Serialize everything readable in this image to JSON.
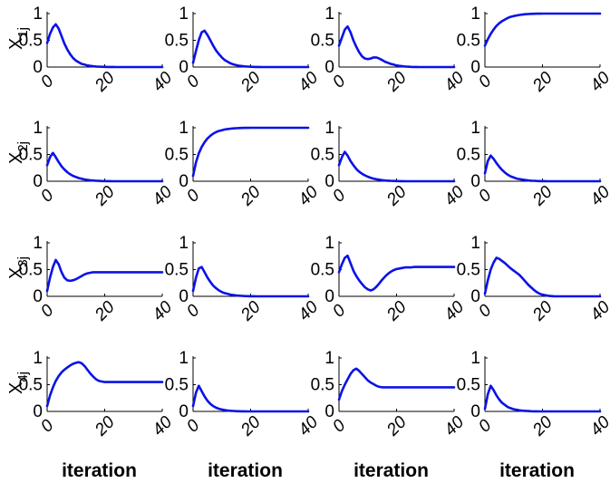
{
  "chart_data": {
    "type": "line",
    "layout": {
      "rows": 4,
      "cols": 4
    },
    "line_color": "#0a12e6",
    "xlim": [
      0,
      40
    ],
    "ylim": [
      0,
      1
    ],
    "xticks": [
      "0",
      "20",
      "40"
    ],
    "yticks": [
      "0",
      "0.5",
      "1"
    ],
    "x": [
      0,
      1,
      2,
      3,
      4,
      5,
      6,
      7,
      8,
      9,
      10,
      11,
      12,
      13,
      14,
      15,
      16,
      17,
      18,
      19,
      20,
      21,
      22,
      23,
      24,
      25,
      26,
      27,
      28,
      29,
      30,
      31,
      32,
      33,
      34,
      35,
      36,
      37,
      38,
      39,
      40
    ],
    "row_labels": [
      {
        "main": "X",
        "sub": "1j"
      },
      {
        "main": "X",
        "sub": "2j"
      },
      {
        "main": "X",
        "sub": "3j"
      },
      {
        "main": "X",
        "sub": "4j"
      }
    ],
    "xlabel": "iteration",
    "panels": [
      {
        "row": 1,
        "col": 1,
        "values": [
          0.45,
          0.62,
          0.74,
          0.8,
          0.72,
          0.58,
          0.44,
          0.33,
          0.24,
          0.17,
          0.12,
          0.09,
          0.06,
          0.045,
          0.03,
          0.022,
          0.015,
          0.01,
          0.007,
          0.005,
          0.003,
          0.002,
          0.001,
          0.001,
          0,
          0,
          0,
          0,
          0,
          0,
          0,
          0,
          0,
          0,
          0,
          0,
          0,
          0,
          0,
          0,
          0
        ]
      },
      {
        "row": 1,
        "col": 2,
        "values": [
          0.08,
          0.3,
          0.5,
          0.65,
          0.68,
          0.6,
          0.5,
          0.4,
          0.31,
          0.24,
          0.18,
          0.13,
          0.1,
          0.07,
          0.05,
          0.035,
          0.025,
          0.018,
          0.012,
          0.008,
          0.005,
          0.003,
          0.002,
          0.001,
          0,
          0,
          0,
          0,
          0,
          0,
          0,
          0,
          0,
          0,
          0,
          0,
          0,
          0,
          0,
          0,
          0
        ]
      },
      {
        "row": 1,
        "col": 3,
        "values": [
          0.4,
          0.55,
          0.7,
          0.76,
          0.65,
          0.5,
          0.38,
          0.28,
          0.2,
          0.16,
          0.15,
          0.16,
          0.18,
          0.18,
          0.16,
          0.13,
          0.1,
          0.08,
          0.06,
          0.045,
          0.03,
          0.022,
          0.015,
          0.01,
          0.007,
          0.004,
          0.002,
          0.001,
          0,
          0,
          0,
          0,
          0,
          0,
          0,
          0,
          0,
          0,
          0,
          0,
          0
        ]
      },
      {
        "row": 1,
        "col": 4,
        "values": [
          0.4,
          0.52,
          0.62,
          0.7,
          0.77,
          0.82,
          0.86,
          0.89,
          0.92,
          0.94,
          0.955,
          0.965,
          0.975,
          0.982,
          0.988,
          0.992,
          0.995,
          0.997,
          0.998,
          0.999,
          1,
          1,
          1,
          1,
          1,
          1,
          1,
          1,
          1,
          1,
          1,
          1,
          1,
          1,
          1,
          1,
          1,
          1,
          1,
          1,
          1
        ]
      },
      {
        "row": 2,
        "col": 1,
        "values": [
          0.3,
          0.45,
          0.53,
          0.45,
          0.36,
          0.28,
          0.22,
          0.17,
          0.13,
          0.1,
          0.08,
          0.06,
          0.045,
          0.034,
          0.025,
          0.018,
          0.013,
          0.009,
          0.006,
          0.004,
          0.003,
          0.002,
          0.001,
          0,
          0,
          0,
          0,
          0,
          0,
          0,
          0,
          0,
          0,
          0,
          0,
          0,
          0,
          0,
          0,
          0,
          0
        ]
      },
      {
        "row": 2,
        "col": 2,
        "values": [
          0.1,
          0.35,
          0.52,
          0.64,
          0.73,
          0.8,
          0.85,
          0.89,
          0.92,
          0.94,
          0.955,
          0.967,
          0.976,
          0.983,
          0.988,
          0.992,
          0.995,
          0.997,
          0.998,
          0.999,
          1,
          1,
          1,
          1,
          1,
          1,
          1,
          1,
          1,
          1,
          1,
          1,
          1,
          1,
          1,
          1,
          1,
          1,
          1,
          1,
          1
        ]
      },
      {
        "row": 2,
        "col": 3,
        "values": [
          0.3,
          0.45,
          0.55,
          0.48,
          0.38,
          0.3,
          0.23,
          0.18,
          0.14,
          0.11,
          0.085,
          0.065,
          0.05,
          0.038,
          0.028,
          0.02,
          0.014,
          0.01,
          0.007,
          0.005,
          0.003,
          0.002,
          0.001,
          0,
          0,
          0,
          0,
          0,
          0,
          0,
          0,
          0,
          0,
          0,
          0,
          0,
          0,
          0,
          0,
          0,
          0
        ]
      },
      {
        "row": 2,
        "col": 4,
        "values": [
          0.15,
          0.38,
          0.48,
          0.42,
          0.34,
          0.27,
          0.21,
          0.16,
          0.12,
          0.09,
          0.07,
          0.05,
          0.04,
          0.03,
          0.022,
          0.016,
          0.011,
          0.008,
          0.005,
          0.003,
          0.002,
          0.001,
          0,
          0,
          0,
          0,
          0,
          0,
          0,
          0,
          0,
          0,
          0,
          0,
          0,
          0,
          0,
          0,
          0,
          0,
          0
        ]
      },
      {
        "row": 3,
        "col": 1,
        "values": [
          0.1,
          0.35,
          0.55,
          0.68,
          0.6,
          0.45,
          0.35,
          0.3,
          0.29,
          0.3,
          0.32,
          0.35,
          0.38,
          0.41,
          0.43,
          0.44,
          0.45,
          0.45,
          0.45,
          0.45,
          0.45,
          0.45,
          0.45,
          0.45,
          0.45,
          0.45,
          0.45,
          0.45,
          0.45,
          0.45,
          0.45,
          0.45,
          0.45,
          0.45,
          0.45,
          0.45,
          0.45,
          0.45,
          0.45,
          0.45,
          0.45
        ]
      },
      {
        "row": 3,
        "col": 2,
        "values": [
          0.1,
          0.35,
          0.52,
          0.55,
          0.45,
          0.35,
          0.27,
          0.2,
          0.15,
          0.11,
          0.08,
          0.06,
          0.045,
          0.033,
          0.024,
          0.017,
          0.012,
          0.008,
          0.005,
          0.003,
          0.002,
          0.001,
          0,
          0,
          0,
          0,
          0,
          0,
          0,
          0,
          0,
          0,
          0,
          0,
          0,
          0,
          0,
          0,
          0,
          0,
          0
        ]
      },
      {
        "row": 3,
        "col": 3,
        "values": [
          0.45,
          0.6,
          0.72,
          0.76,
          0.62,
          0.48,
          0.38,
          0.3,
          0.23,
          0.17,
          0.13,
          0.11,
          0.13,
          0.18,
          0.24,
          0.31,
          0.37,
          0.42,
          0.46,
          0.49,
          0.51,
          0.52,
          0.53,
          0.54,
          0.54,
          0.54,
          0.55,
          0.55,
          0.55,
          0.55,
          0.55,
          0.55,
          0.55,
          0.55,
          0.55,
          0.55,
          0.55,
          0.55,
          0.55,
          0.55,
          0.55
        ]
      },
      {
        "row": 3,
        "col": 4,
        "values": [
          0.05,
          0.3,
          0.5,
          0.63,
          0.72,
          0.7,
          0.66,
          0.62,
          0.57,
          0.52,
          0.48,
          0.44,
          0.4,
          0.34,
          0.28,
          0.22,
          0.17,
          0.12,
          0.08,
          0.05,
          0.03,
          0.02,
          0.01,
          0.005,
          0.002,
          0,
          0,
          0,
          0,
          0,
          0,
          0,
          0,
          0,
          0,
          0,
          0,
          0,
          0,
          0,
          0
        ]
      },
      {
        "row": 4,
        "col": 1,
        "values": [
          0.1,
          0.3,
          0.45,
          0.57,
          0.66,
          0.73,
          0.78,
          0.82,
          0.86,
          0.89,
          0.91,
          0.92,
          0.9,
          0.85,
          0.78,
          0.71,
          0.65,
          0.6,
          0.57,
          0.56,
          0.55,
          0.55,
          0.55,
          0.55,
          0.55,
          0.55,
          0.55,
          0.55,
          0.55,
          0.55,
          0.55,
          0.55,
          0.55,
          0.55,
          0.55,
          0.55,
          0.55,
          0.55,
          0.55,
          0.55,
          0.55
        ]
      },
      {
        "row": 4,
        "col": 2,
        "values": [
          0.1,
          0.35,
          0.48,
          0.38,
          0.28,
          0.2,
          0.14,
          0.1,
          0.07,
          0.05,
          0.035,
          0.025,
          0.017,
          0.012,
          0.008,
          0.005,
          0.003,
          0.002,
          0.001,
          0,
          0,
          0,
          0,
          0,
          0,
          0,
          0,
          0,
          0,
          0,
          0,
          0,
          0,
          0,
          0,
          0,
          0,
          0,
          0,
          0,
          0
        ]
      },
      {
        "row": 4,
        "col": 3,
        "values": [
          0.22,
          0.38,
          0.5,
          0.6,
          0.7,
          0.77,
          0.8,
          0.76,
          0.7,
          0.64,
          0.58,
          0.54,
          0.51,
          0.48,
          0.46,
          0.45,
          0.45,
          0.45,
          0.45,
          0.45,
          0.45,
          0.45,
          0.45,
          0.45,
          0.45,
          0.45,
          0.45,
          0.45,
          0.45,
          0.45,
          0.45,
          0.45,
          0.45,
          0.45,
          0.45,
          0.45,
          0.45,
          0.45,
          0.45,
          0.45,
          0.45
        ]
      },
      {
        "row": 4,
        "col": 4,
        "values": [
          0.05,
          0.32,
          0.48,
          0.4,
          0.3,
          0.22,
          0.16,
          0.12,
          0.08,
          0.06,
          0.04,
          0.03,
          0.02,
          0.014,
          0.01,
          0.006,
          0.004,
          0.002,
          0.001,
          0,
          0,
          0,
          0,
          0,
          0,
          0,
          0,
          0,
          0,
          0,
          0,
          0,
          0,
          0,
          0,
          0,
          0,
          0,
          0,
          0,
          0
        ]
      }
    ]
  }
}
